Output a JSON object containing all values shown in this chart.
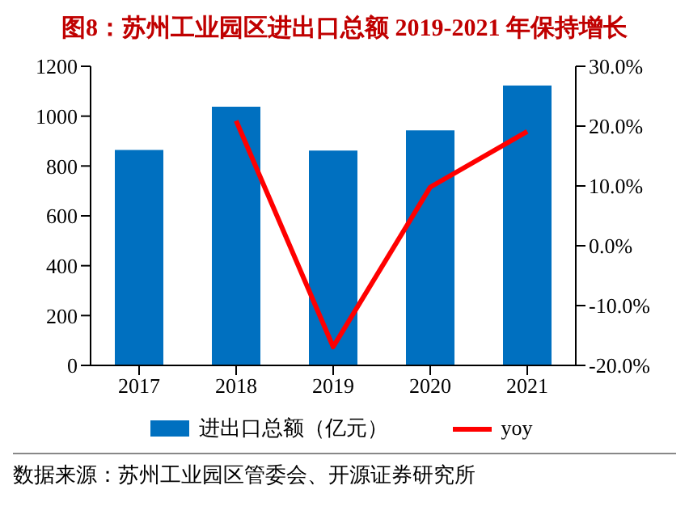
{
  "chart_data": {
    "type": "bar",
    "title": "图8：苏州工业园区进出口总额 2019-2021 年保持增长",
    "categories": [
      "2017",
      "2018",
      "2019",
      "2020",
      "2021"
    ],
    "series": [
      {
        "name": "进出口总额（亿元）",
        "color": "#0070c0",
        "values": [
          864,
          1038,
          862,
          943,
          1123
        ]
      },
      {
        "name": "yoy",
        "type": "line",
        "axis": "y2",
        "color": "#ff0000",
        "values": [
          null,
          20.9,
          -16.9,
          9.8,
          19.1
        ]
      }
    ],
    "ylim": [
      0,
      1200
    ],
    "yticks": [
      0,
      200,
      400,
      600,
      800,
      1000,
      1200
    ],
    "y2lim": [
      -20,
      30
    ],
    "y2ticks": [
      {
        "value": -20,
        "label": "-20.0%"
      },
      {
        "value": -10,
        "label": "-10.0%"
      },
      {
        "value": 0,
        "label": "0.0%"
      },
      {
        "value": 10,
        "label": "10.0%"
      },
      {
        "value": 20,
        "label": "20.0%"
      },
      {
        "value": 30,
        "label": "30.0%"
      }
    ],
    "legend": "bottom",
    "grid": false,
    "marker": "none",
    "annotations": [
      "数据来源：苏州工业园区管委会、开源证券研究所"
    ]
  }
}
